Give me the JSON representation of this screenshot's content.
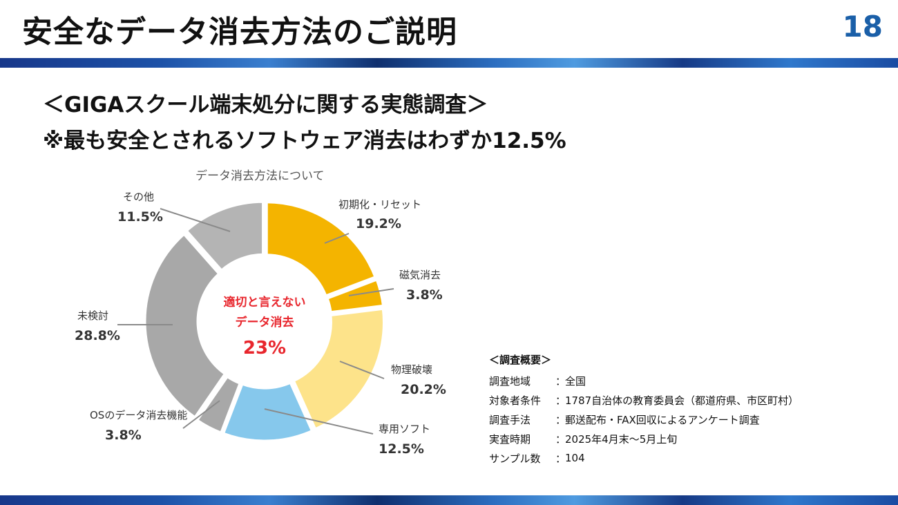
{
  "slide": {
    "title": "安全なデータ消去方法のご説明",
    "page_number": "18"
  },
  "subtitle": {
    "line1": "＜GIGAスクール端末処分に関する実態調査＞",
    "line2": "※最も安全とされるソフトウェア消去はわずか12.5%"
  },
  "chart_data": {
    "type": "pie",
    "title": "データ消去方法について",
    "center_label": {
      "line1": "適切と言えない",
      "line2": "データ消去",
      "value": "23%"
    },
    "slices": [
      {
        "name": "初期化・リセット",
        "value": 19.2,
        "label": "19.2%",
        "color": "#f4b400"
      },
      {
        "name": "磁気消去",
        "value": 3.8,
        "label": "3.8%",
        "color": "#f4b400"
      },
      {
        "name": "物理破壊",
        "value": 20.2,
        "label": "20.2%",
        "color": "#fde38a"
      },
      {
        "name": "専用ソフト",
        "value": 12.5,
        "label": "12.5%",
        "color": "#86c8ec"
      },
      {
        "name": "OSのデータ消去機能",
        "value": 3.8,
        "label": "3.8%",
        "color": "#a8a8a8"
      },
      {
        "name": "未検討",
        "value": 28.8,
        "label": "28.8%",
        "color": "#a8a8a8"
      },
      {
        "name": "その他",
        "value": 11.5,
        "label": "11.5%",
        "color": "#b4b4b4"
      }
    ],
    "center_text_color": "#e8262d",
    "legend": "none"
  },
  "survey": {
    "heading": "＜調査概要＞",
    "separator": "：",
    "rows": [
      {
        "label": "調査地域",
        "value": "全国"
      },
      {
        "label": "対象者条件",
        "value": "1787自治体の教育委員会（都道府県、市区町村）"
      },
      {
        "label": "調査手法",
        "value": "郵送配布・FAX回収によるアンケート調査"
      },
      {
        "label": "実査時期",
        "value": "2025年4月末～5月上旬"
      },
      {
        "label": "サンプル数",
        "value": "104"
      }
    ]
  }
}
